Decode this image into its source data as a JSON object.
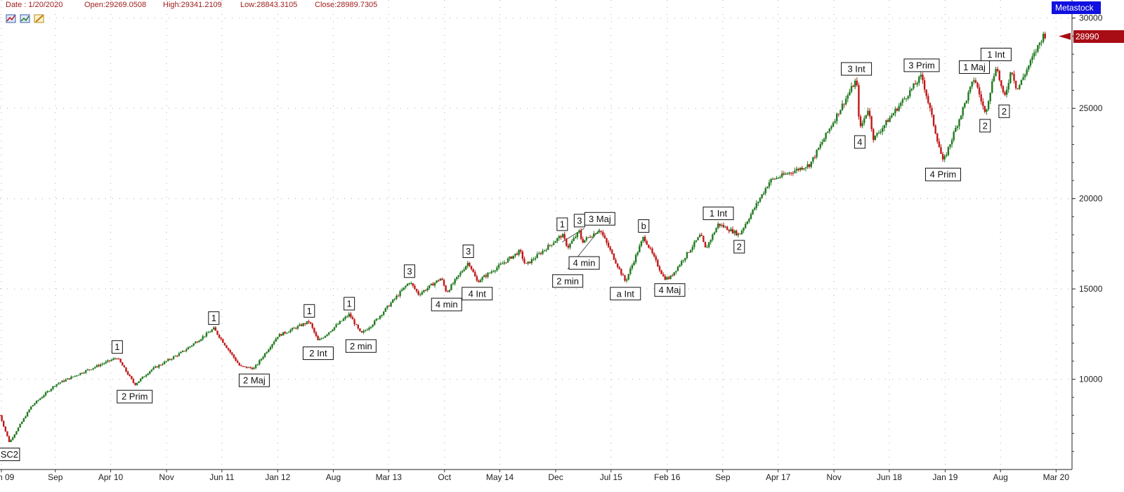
{
  "header": {
    "date": "Date : 1/20/2020",
    "open": "Open:29269.0508",
    "high": "High:29341.2109",
    "low": "Low:28843.3105",
    "close": "Close:28989.7305"
  },
  "brand": "Metastock",
  "last_price_tag": "28990",
  "colors": {
    "up": "#1f7a1f",
    "down": "#c01818",
    "grid": "#b8b8b8",
    "tag": "#a80c14",
    "brand": "#1010e0"
  },
  "toolbar_icons": [
    "chart-zoom-icon",
    "chart-scroll-icon",
    "chart-edit-icon"
  ],
  "chart_data": {
    "type": "line",
    "title": "",
    "x_ticks": [
      "n 09",
      "Sep",
      "Apr 10",
      "Nov",
      "Jun 11",
      "Jan 12",
      "Aug",
      "Mar 13",
      "Oct",
      "May 14",
      "Dec",
      "Jul 15",
      "Feb 16",
      "Sep",
      "Apr 17",
      "Nov",
      "Jun 18",
      "Jan 19",
      "Aug",
      "Mar 20"
    ],
    "y_ticks": [
      "30000",
      "25000",
      "20000",
      "15000",
      "10000"
    ],
    "ylim": [
      5000,
      31000
    ],
    "x_range": [
      "2009-02-01",
      "2020-05-01"
    ],
    "grid": true,
    "series": [
      {
        "x": [
          "2009-02-01",
          "2009-03-09",
          "2009-06-01",
          "2009-09-01",
          "2010-01-01",
          "2010-04-26",
          "2010-07-02",
          "2010-09-01",
          "2010-12-31",
          "2011-05-01",
          "2011-08-10",
          "2011-10-03",
          "2012-01-01",
          "2012-05-01",
          "2012-06-04",
          "2012-10-01",
          "2012-11-15",
          "2013-01-01",
          "2013-05-20",
          "2013-06-24",
          "2013-09-18",
          "2013-10-09",
          "2014-01-01",
          "2014-02-03",
          "2014-07-17",
          "2014-08-07",
          "2014-12-26",
          "2015-01-16",
          "2015-03-02",
          "2015-03-11",
          "2015-05-19",
          "2015-08-25",
          "2015-11-03",
          "2016-01-20",
          "2016-02-11",
          "2016-06-08",
          "2016-06-27",
          "2016-08-15",
          "2016-11-03",
          "2017-03-01",
          "2017-08-01",
          "2018-01-26",
          "2018-02-08",
          "2018-03-12",
          "2018-04-02",
          "2018-10-03",
          "2018-12-24",
          "2019-04-23",
          "2019-06-03",
          "2019-07-15",
          "2019-08-15",
          "2019-09-12",
          "2019-10-03",
          "2020-01-17",
          "2020-01-20"
        ],
        "y": [
          8000,
          6500,
          8500,
          9700,
          10500,
          11200,
          9700,
          10500,
          11500,
          12800,
          10700,
          10600,
          12400,
          13200,
          12100,
          13600,
          12500,
          13100,
          15400,
          14700,
          15600,
          14800,
          16500,
          15400,
          17100,
          16300,
          18000,
          17300,
          18200,
          17600,
          18300,
          15400,
          17900,
          15600,
          15600,
          18000,
          17200,
          18600,
          18000,
          21000,
          21900,
          26600,
          23800,
          25000,
          23300,
          26800,
          22000,
          26700,
          24700,
          27400,
          25500,
          27200,
          26000,
          29200,
          28990
        ]
      }
    ],
    "annotations": [
      {
        "text": "SC2",
        "x": "2009-03-09",
        "y": 6500,
        "pos": "below"
      },
      {
        "text": "1",
        "x": "2010-04-26",
        "y": 11200,
        "pos": "above"
      },
      {
        "text": "2 Prim",
        "x": "2010-07-02",
        "y": 9700,
        "pos": "below"
      },
      {
        "text": "1",
        "x": "2011-05-01",
        "y": 12800,
        "pos": "above"
      },
      {
        "text": "2 Maj",
        "x": "2011-10-03",
        "y": 10600,
        "pos": "below"
      },
      {
        "text": "1",
        "x": "2012-05-01",
        "y": 13200,
        "pos": "above"
      },
      {
        "text": "2 Int",
        "x": "2012-06-04",
        "y": 12100,
        "pos": "below"
      },
      {
        "text": "1",
        "x": "2012-10-01",
        "y": 13600,
        "pos": "above"
      },
      {
        "text": "2 min",
        "x": "2012-11-15",
        "y": 12500,
        "pos": "below"
      },
      {
        "text": "3",
        "x": "2013-05-20",
        "y": 15400,
        "pos": "above"
      },
      {
        "text": "4 min",
        "x": "2013-10-09",
        "y": 14800,
        "pos": "below"
      },
      {
        "text": "3",
        "x": "2013-12-31",
        "y": 16500,
        "pos": "above"
      },
      {
        "text": "4 Int",
        "x": "2014-02-03",
        "y": 15400,
        "pos": "below"
      },
      {
        "text": "1",
        "x": "2014-12-26",
        "y": 18000,
        "pos": "above"
      },
      {
        "text": "2 min",
        "x": "2015-01-16",
        "y": 16100,
        "pos": "below"
      },
      {
        "text": "3",
        "x": "2015-03-02",
        "y": 18200,
        "pos": "above"
      },
      {
        "text": "4 min",
        "x": "2015-03-20",
        "y": 17100,
        "pos": "below"
      },
      {
        "text": "3 Maj",
        "x": "2015-05-19",
        "y": 18300,
        "pos": "above"
      },
      {
        "text": "a Int",
        "x": "2015-08-25",
        "y": 15400,
        "pos": "below"
      },
      {
        "text": "b",
        "x": "2015-11-03",
        "y": 17900,
        "pos": "above"
      },
      {
        "text": "4 Maj",
        "x": "2016-02-11",
        "y": 15600,
        "pos": "below"
      },
      {
        "text": "1 Int",
        "x": "2016-08-15",
        "y": 18600,
        "pos": "above"
      },
      {
        "text": "2",
        "x": "2016-11-03",
        "y": 18000,
        "pos": "below"
      },
      {
        "text": "3 Int",
        "x": "2018-01-26",
        "y": 26600,
        "pos": "above"
      },
      {
        "text": "4",
        "x": "2018-02-08",
        "y": 23800,
        "pos": "below"
      },
      {
        "text": "3 Prim",
        "x": "2018-10-03",
        "y": 26800,
        "pos": "above"
      },
      {
        "text": "4 Prim",
        "x": "2018-12-24",
        "y": 22000,
        "pos": "below"
      },
      {
        "text": "1 Maj",
        "x": "2019-04-23",
        "y": 26700,
        "pos": "above"
      },
      {
        "text": "2",
        "x": "2019-06-03",
        "y": 24700,
        "pos": "below"
      },
      {
        "text": "1 Int",
        "x": "2019-07-15",
        "y": 27400,
        "pos": "above"
      },
      {
        "text": "2",
        "x": "2019-08-15",
        "y": 25500,
        "pos": "below"
      }
    ],
    "trendlines": [
      {
        "from": {
          "x": "2015-01-16",
          "y": 16100
        },
        "to": {
          "x": "2015-05-19",
          "y": 18300
        }
      },
      {
        "from": {
          "x": "2014-12-26",
          "y": 17600
        },
        "to": {
          "x": "2015-03-20",
          "y": 18350
        }
      }
    ]
  }
}
